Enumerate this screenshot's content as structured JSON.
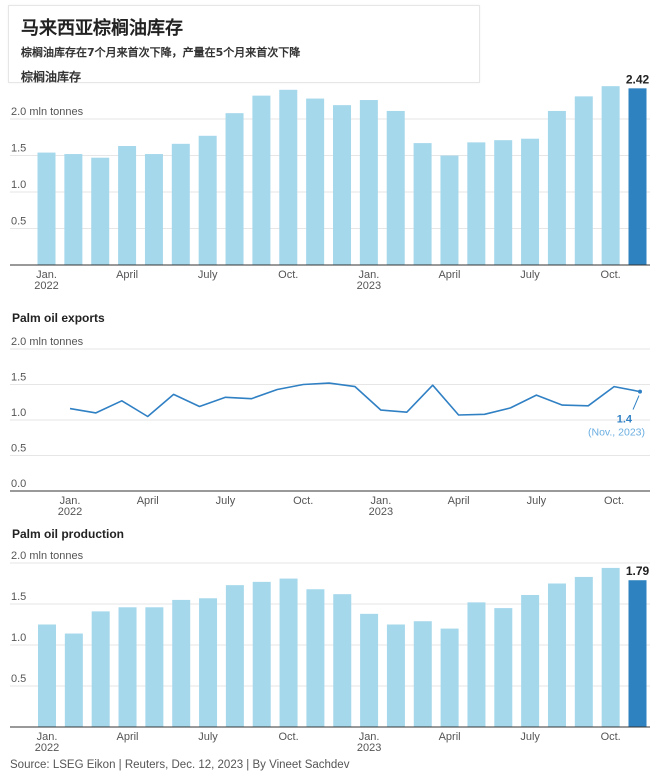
{
  "header": {
    "title": "马来西亚棕榈油库存",
    "subtitle": "棕榈油库存在7个月来首次下降，产量在5个月来首次下降"
  },
  "colors": {
    "bar": "#a6d8ec",
    "highlight": "#2e82c0",
    "line": "#3080c4",
    "grid": "#e6e6e6",
    "axis": "#333333"
  },
  "x_tick_labels": [
    {
      "index": 0,
      "label": "Jan.",
      "year": "2022"
    },
    {
      "index": 3,
      "label": "April"
    },
    {
      "index": 6,
      "label": "July"
    },
    {
      "index": 9,
      "label": "Oct."
    },
    {
      "index": 12,
      "label": "Jan.",
      "year": "2023"
    },
    {
      "index": 15,
      "label": "April"
    },
    {
      "index": 18,
      "label": "July"
    },
    {
      "index": 21,
      "label": "Oct."
    }
  ],
  "chart_data": [
    {
      "type": "bar",
      "title": "棕榈油库存",
      "unit_label": "mln tonnes",
      "x": [
        "2022-01",
        "2022-02",
        "2022-03",
        "2022-04",
        "2022-05",
        "2022-06",
        "2022-07",
        "2022-08",
        "2022-09",
        "2022-10",
        "2022-11",
        "2022-12",
        "2023-01",
        "2023-02",
        "2023-03",
        "2023-04",
        "2023-05",
        "2023-06",
        "2023-07",
        "2023-08",
        "2023-09",
        "2023-10",
        "2023-11"
      ],
      "values": [
        1.54,
        1.52,
        1.47,
        1.63,
        1.52,
        1.66,
        1.77,
        2.08,
        2.32,
        2.4,
        2.28,
        2.19,
        2.26,
        2.11,
        1.67,
        1.5,
        1.68,
        1.71,
        1.73,
        2.11,
        2.31,
        2.45,
        2.42
      ],
      "y_ticks": [
        "0.5",
        "1.0",
        "1.5",
        "2.0"
      ],
      "ylim": [
        0,
        2.5
      ],
      "grid": true,
      "highlight_last": true,
      "last_label": "2.42"
    },
    {
      "type": "line",
      "title": "Palm oil exports",
      "unit_label": "mln tonnes",
      "x": [
        "2022-01",
        "2022-02",
        "2022-03",
        "2022-04",
        "2022-05",
        "2022-06",
        "2022-07",
        "2022-08",
        "2022-09",
        "2022-10",
        "2022-11",
        "2022-12",
        "2023-01",
        "2023-02",
        "2023-03",
        "2023-04",
        "2023-05",
        "2023-06",
        "2023-07",
        "2023-08",
        "2023-09",
        "2023-10",
        "2023-11"
      ],
      "values": [
        1.16,
        1.1,
        1.27,
        1.05,
        1.36,
        1.19,
        1.32,
        1.3,
        1.43,
        1.5,
        1.52,
        1.47,
        1.14,
        1.11,
        1.49,
        1.07,
        1.08,
        1.17,
        1.35,
        1.21,
        1.2,
        1.47,
        1.4
      ],
      "y_ticks": [
        "0.0",
        "0.5",
        "1.0",
        "1.5",
        "2.0"
      ],
      "ylim": [
        0,
        2.0
      ],
      "grid": true,
      "annotation": {
        "value": "1.4",
        "date": "(Nov., 2023)"
      }
    },
    {
      "type": "bar",
      "title": "Palm oil production",
      "unit_label": "mln tonnes",
      "x": [
        "2022-01",
        "2022-02",
        "2022-03",
        "2022-04",
        "2022-05",
        "2022-06",
        "2022-07",
        "2022-08",
        "2022-09",
        "2022-10",
        "2022-11",
        "2022-12",
        "2023-01",
        "2023-02",
        "2023-03",
        "2023-04",
        "2023-05",
        "2023-06",
        "2023-07",
        "2023-08",
        "2023-09",
        "2023-10",
        "2023-11"
      ],
      "values": [
        1.25,
        1.14,
        1.41,
        1.46,
        1.46,
        1.55,
        1.57,
        1.73,
        1.77,
        1.81,
        1.68,
        1.62,
        1.38,
        1.25,
        1.29,
        1.2,
        1.52,
        1.45,
        1.61,
        1.75,
        1.83,
        1.94,
        1.79
      ],
      "y_ticks": [
        "0.5",
        "1.0",
        "1.5",
        "2.0"
      ],
      "ylim": [
        0,
        2.0
      ],
      "grid": true,
      "highlight_last": true,
      "last_label": "1.79"
    }
  ],
  "footer": {
    "source": "Source: LSEG Eikon | Reuters, Dec. 12, 2023 | By Vineet Sachdev"
  }
}
